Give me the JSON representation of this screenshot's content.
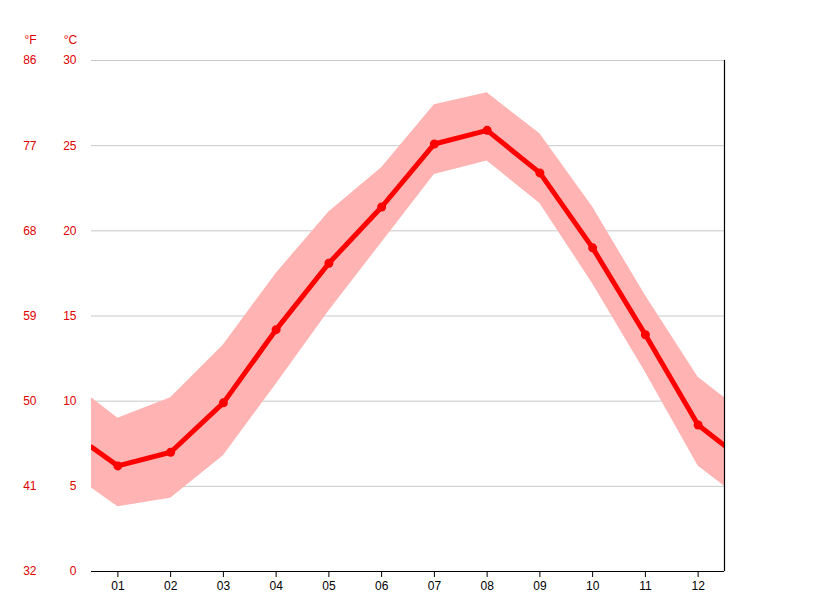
{
  "chart_data": {
    "type": "line",
    "ylabel": "°C",
    "y2label": "°F",
    "x": [
      0.5,
      1,
      2,
      3,
      4,
      5,
      6,
      7,
      8,
      9,
      10,
      11,
      12,
      12.5
    ],
    "values": [
      7.3,
      6.2,
      7.0,
      9.9,
      14.2,
      18.1,
      21.4,
      25.1,
      25.9,
      23.4,
      19.0,
      13.9,
      8.6,
      7.4
    ],
    "range_low": [
      4.9,
      3.8,
      4.3,
      6.8,
      11.0,
      15.3,
      19.3,
      23.3,
      24.1,
      21.6,
      16.9,
      11.7,
      6.2,
      5.0
    ],
    "range_high": [
      10.2,
      9.0,
      10.2,
      13.3,
      17.5,
      21.1,
      23.7,
      27.4,
      28.1,
      25.7,
      21.4,
      16.2,
      11.4,
      10.2
    ],
    "color": "#ff0000",
    "range_color": "#ffb3b3",
    "marker": "circle",
    "xlim": [
      0.5,
      12.5
    ],
    "xticks": [
      {
        "value": 1,
        "label": "01"
      },
      {
        "value": 2,
        "label": "02"
      },
      {
        "value": 3,
        "label": "03"
      },
      {
        "value": 4,
        "label": "04"
      },
      {
        "value": 5,
        "label": "05"
      },
      {
        "value": 6,
        "label": "06"
      },
      {
        "value": 7,
        "label": "07"
      },
      {
        "value": 8,
        "label": "08"
      },
      {
        "value": 9,
        "label": "09"
      },
      {
        "value": 10,
        "label": "10"
      },
      {
        "value": 11,
        "label": "11"
      },
      {
        "value": 12,
        "label": "12"
      }
    ],
    "ylim": [
      0,
      30
    ],
    "yticks": [
      0,
      5,
      10,
      15,
      20,
      25,
      30
    ],
    "y2lim": [
      32,
      86
    ],
    "y2ticks": [
      32,
      41,
      50,
      59,
      68,
      77,
      86
    ],
    "grid": true
  }
}
